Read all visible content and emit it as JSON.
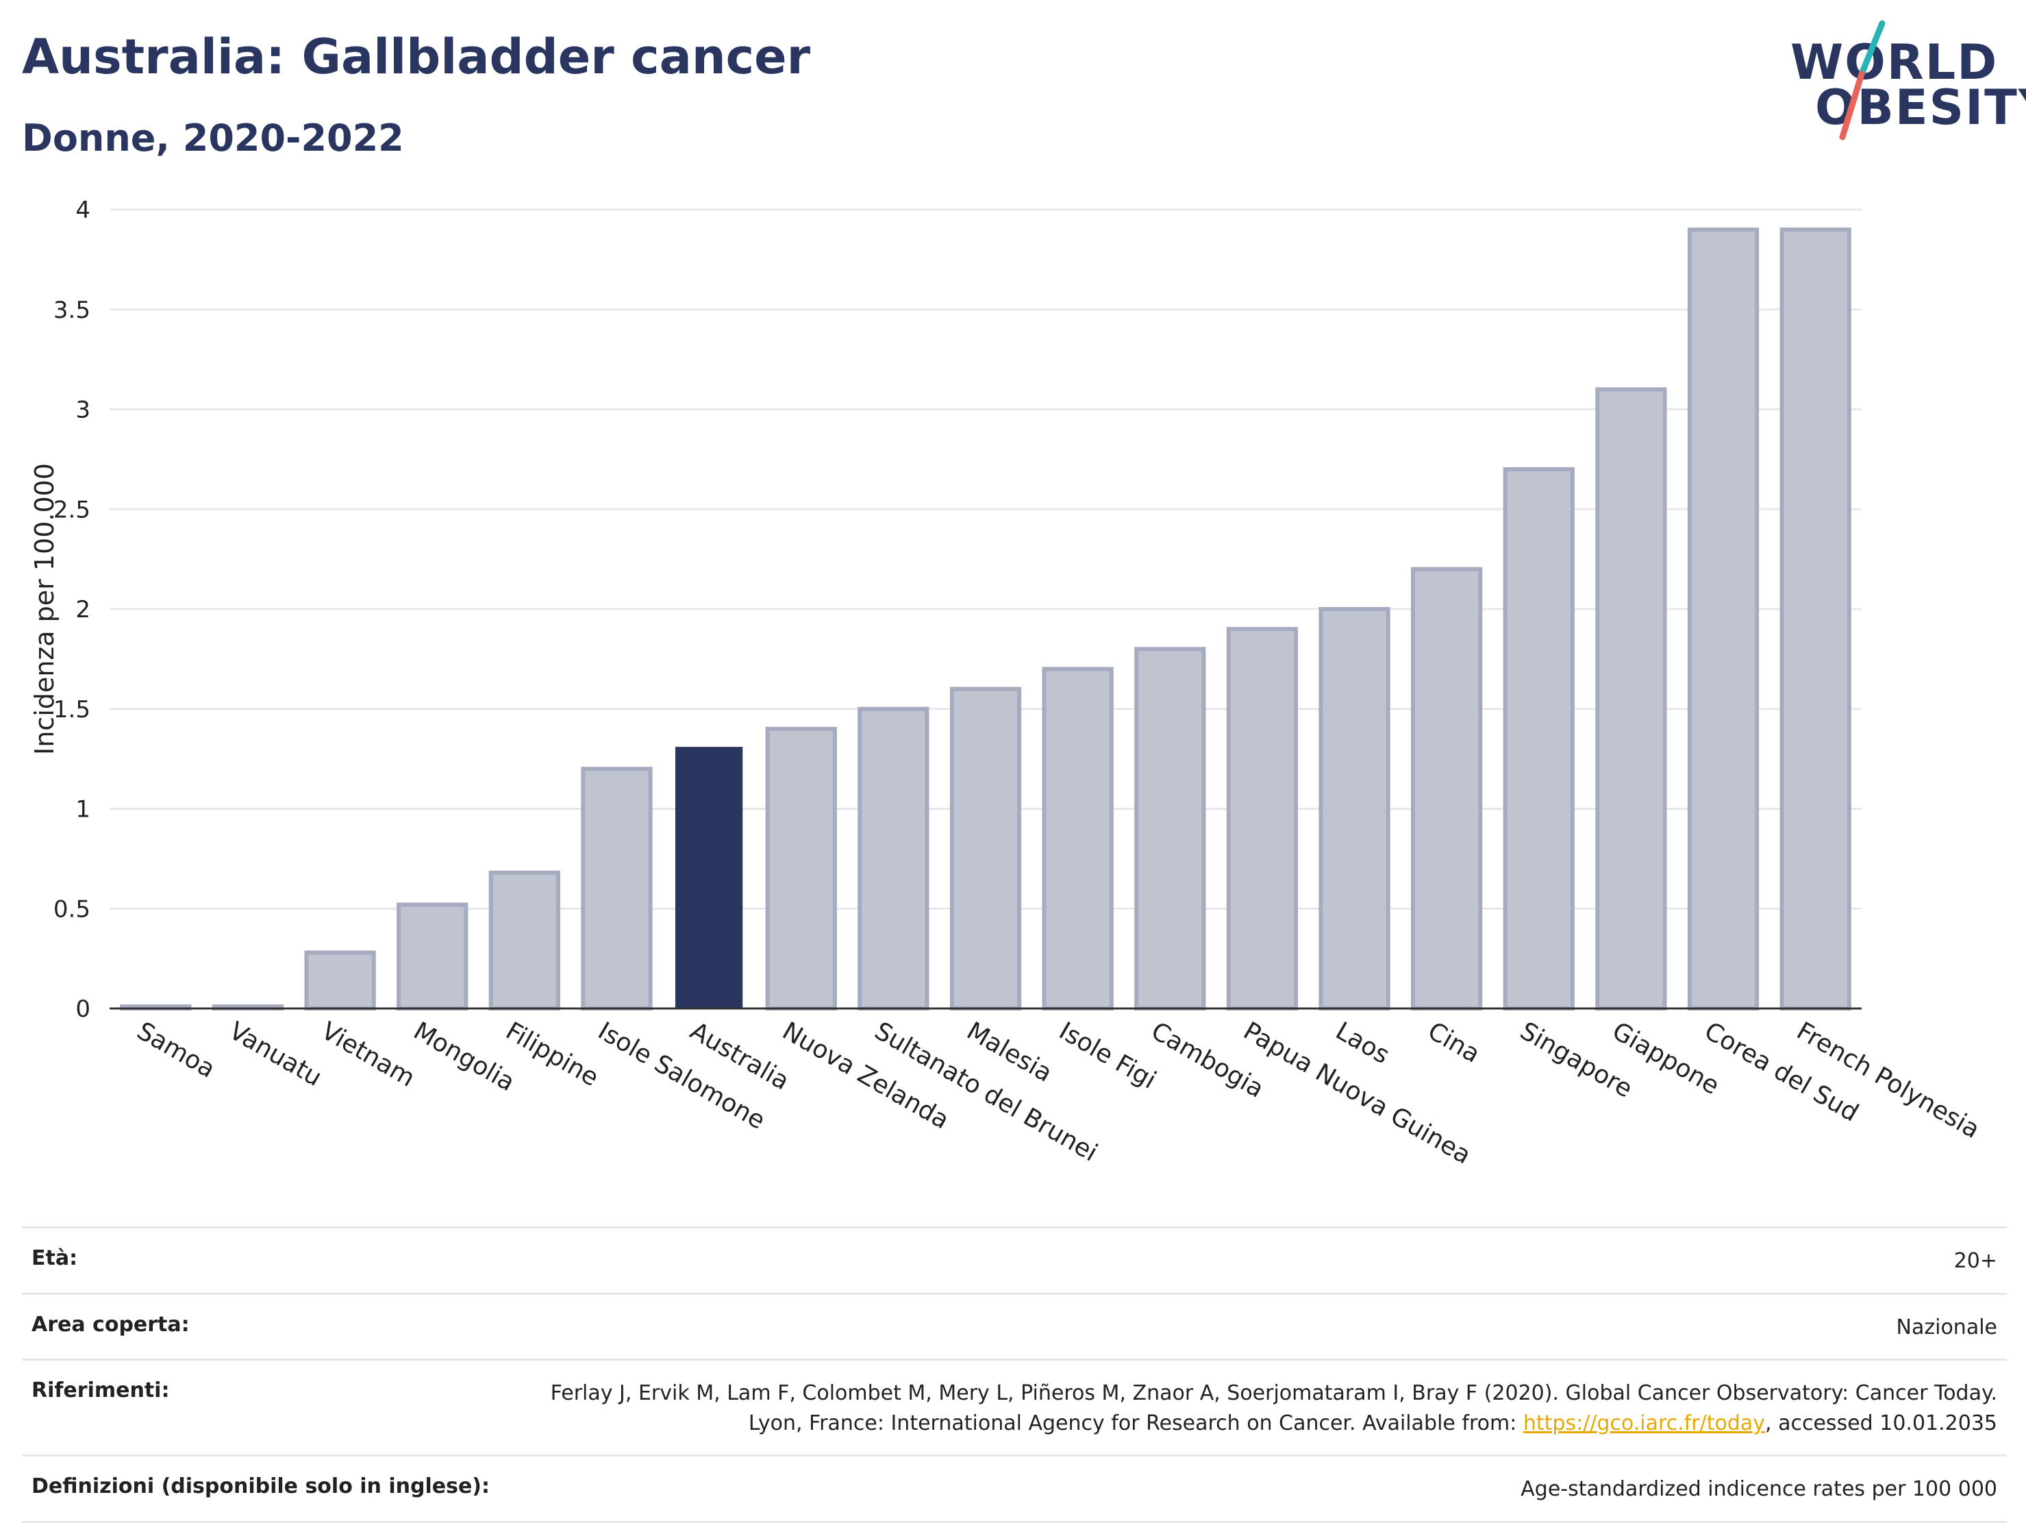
{
  "header": {
    "title": "Australia: Gallbladder cancer",
    "subtitle": "Donne, 2020-2022"
  },
  "logo": {
    "line1": "WORLD",
    "line2": "OBESITY",
    "slash_colors": [
      "#2ab3b3",
      "#e8645a"
    ]
  },
  "colors": {
    "highlight_bar": "#2a3560",
    "other_bar_fill": "#c0c3d0",
    "other_bar_stroke": "#a7abbf",
    "text_dark": "#2a3560",
    "link": "#e8a800"
  },
  "chart_data": {
    "type": "bar",
    "title": "",
    "xlabel": "",
    "ylabel": "Incidenza per 100.000",
    "ylim": [
      0,
      4
    ],
    "yticks": [
      0,
      0.5,
      1,
      1.5,
      2,
      2.5,
      3,
      3.5,
      4
    ],
    "ytick_labels": [
      "0",
      "0.5",
      "1",
      "1.5",
      "2",
      "2.5",
      "3",
      "3.5",
      "4"
    ],
    "grid": true,
    "highlight": "Australia",
    "categories": [
      "Samoa",
      "Vanuatu",
      "Vietnam",
      "Mongolia",
      "Filippine",
      "Isole Salomone",
      "Australia",
      "Nuova Zelanda",
      "Sultanato del Brunei",
      "Malesia",
      "Isole Figi",
      "Cambogia",
      "Papua Nuova Guinea",
      "Laos",
      "Cina",
      "Singapore",
      "Giappone",
      "Corea del Sud",
      "French Polynesia"
    ],
    "values": [
      0.01,
      0.01,
      0.28,
      0.52,
      0.68,
      1.2,
      1.31,
      1.4,
      1.5,
      1.6,
      1.7,
      1.8,
      1.9,
      2.0,
      2.2,
      2.7,
      3.1,
      3.9,
      3.9
    ]
  },
  "info": {
    "rows": [
      {
        "label": "Età:",
        "value": "20+"
      },
      {
        "label": "Area coperta:",
        "value": "Nazionale"
      },
      {
        "label": "Riferimenti:",
        "value_before": "Ferlay J, Ervik M, Lam F, Colombet M, Mery L, Piñeros M, Znaor A, Soerjomataram I, Bray F (2020). Global Cancer Observatory: Cancer Today. Lyon, France: International Agency for Research on Cancer. Available from: ",
        "link": "https://gco.iarc.fr/today",
        "value_after": ", accessed 10.01.2035"
      },
      {
        "label": "Definizioni (disponibile solo in inglese):",
        "value": "Age-standardized indicence rates per 100 000"
      }
    ]
  }
}
